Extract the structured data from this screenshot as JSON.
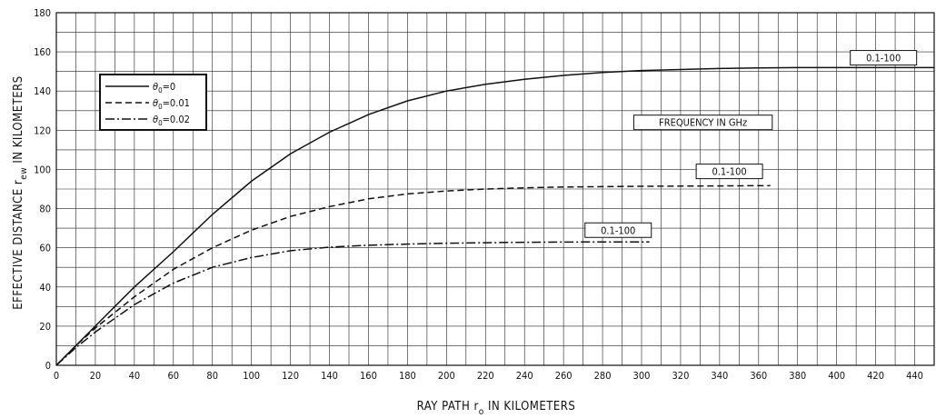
{
  "chart_data": {
    "type": "line",
    "xlabel": "RAY PATH r",
    "xlabel_sub": "o",
    "xlabel_tail": " IN KILOMETERS",
    "ylabel": "EFFECTIVE DISTANCE r",
    "ylabel_sub": "ew",
    "ylabel_tail": " IN KILOMETERS",
    "xlim": [
      0,
      450
    ],
    "ylim": [
      0,
      180
    ],
    "x_ticks": [
      0,
      20,
      40,
      60,
      80,
      100,
      120,
      140,
      160,
      180,
      200,
      220,
      240,
      260,
      280,
      300,
      320,
      340,
      360,
      380,
      400,
      420,
      440
    ],
    "y_ticks": [
      0,
      20,
      40,
      60,
      80,
      100,
      120,
      140,
      160,
      180
    ],
    "grid": true,
    "legend_position": "upper-left",
    "series": [
      {
        "name": "θ0=0",
        "legend_symbol": "θ",
        "legend_sub": "0",
        "legend_value": "=0",
        "dash": "solid",
        "label": "0.1-100",
        "x": [
          0,
          10,
          20,
          40,
          60,
          80,
          100,
          120,
          140,
          160,
          180,
          200,
          220,
          240,
          260,
          280,
          300,
          320,
          340,
          360,
          380,
          400,
          420,
          450
        ],
        "y": [
          0,
          10,
          20,
          40,
          58,
          77,
          94,
          108,
          119,
          128,
          135,
          140,
          143.5,
          146,
          148,
          149.5,
          150.5,
          151,
          151.5,
          151.8,
          152,
          152,
          152,
          152
        ]
      },
      {
        "name": "θ0=0.01",
        "legend_symbol": "θ",
        "legend_sub": "0",
        "legend_value": "=0.01",
        "dash": "dashed",
        "label": "0.1-100",
        "x": [
          0,
          10,
          20,
          40,
          60,
          80,
          100,
          120,
          140,
          160,
          180,
          200,
          220,
          240,
          260,
          280,
          300,
          320,
          340,
          366
        ],
        "y": [
          0,
          10,
          19,
          35,
          49,
          60,
          69,
          76,
          81,
          85,
          87.5,
          89,
          90,
          90.6,
          91,
          91.2,
          91.4,
          91.5,
          91.6,
          91.7
        ]
      },
      {
        "name": "θ0=0.02",
        "legend_symbol": "θ",
        "legend_sub": "0",
        "legend_value": "=0.02",
        "dash": "dashdot",
        "label": "0.1-100",
        "x": [
          0,
          10,
          20,
          40,
          60,
          80,
          100,
          120,
          140,
          160,
          180,
          200,
          220,
          240,
          260,
          280,
          304
        ],
        "y": [
          0,
          9,
          17,
          31,
          42,
          50,
          55,
          58.5,
          60.3,
          61.3,
          61.9,
          62.3,
          62.6,
          62.8,
          62.9,
          63,
          63
        ]
      }
    ],
    "annotations": [
      {
        "text": "0.1-100",
        "x_left": 407,
        "x_right": 441,
        "y": 157
      },
      {
        "text": "0.1-100",
        "x_left": 328,
        "x_right": 362,
        "y": 99
      },
      {
        "text": "0.1-100",
        "x_left": 271,
        "x_right": 305,
        "y": 69
      },
      {
        "text": "FREQUENCY IN GHz",
        "x_left": 296,
        "x_right": 367,
        "y": 124
      }
    ]
  }
}
